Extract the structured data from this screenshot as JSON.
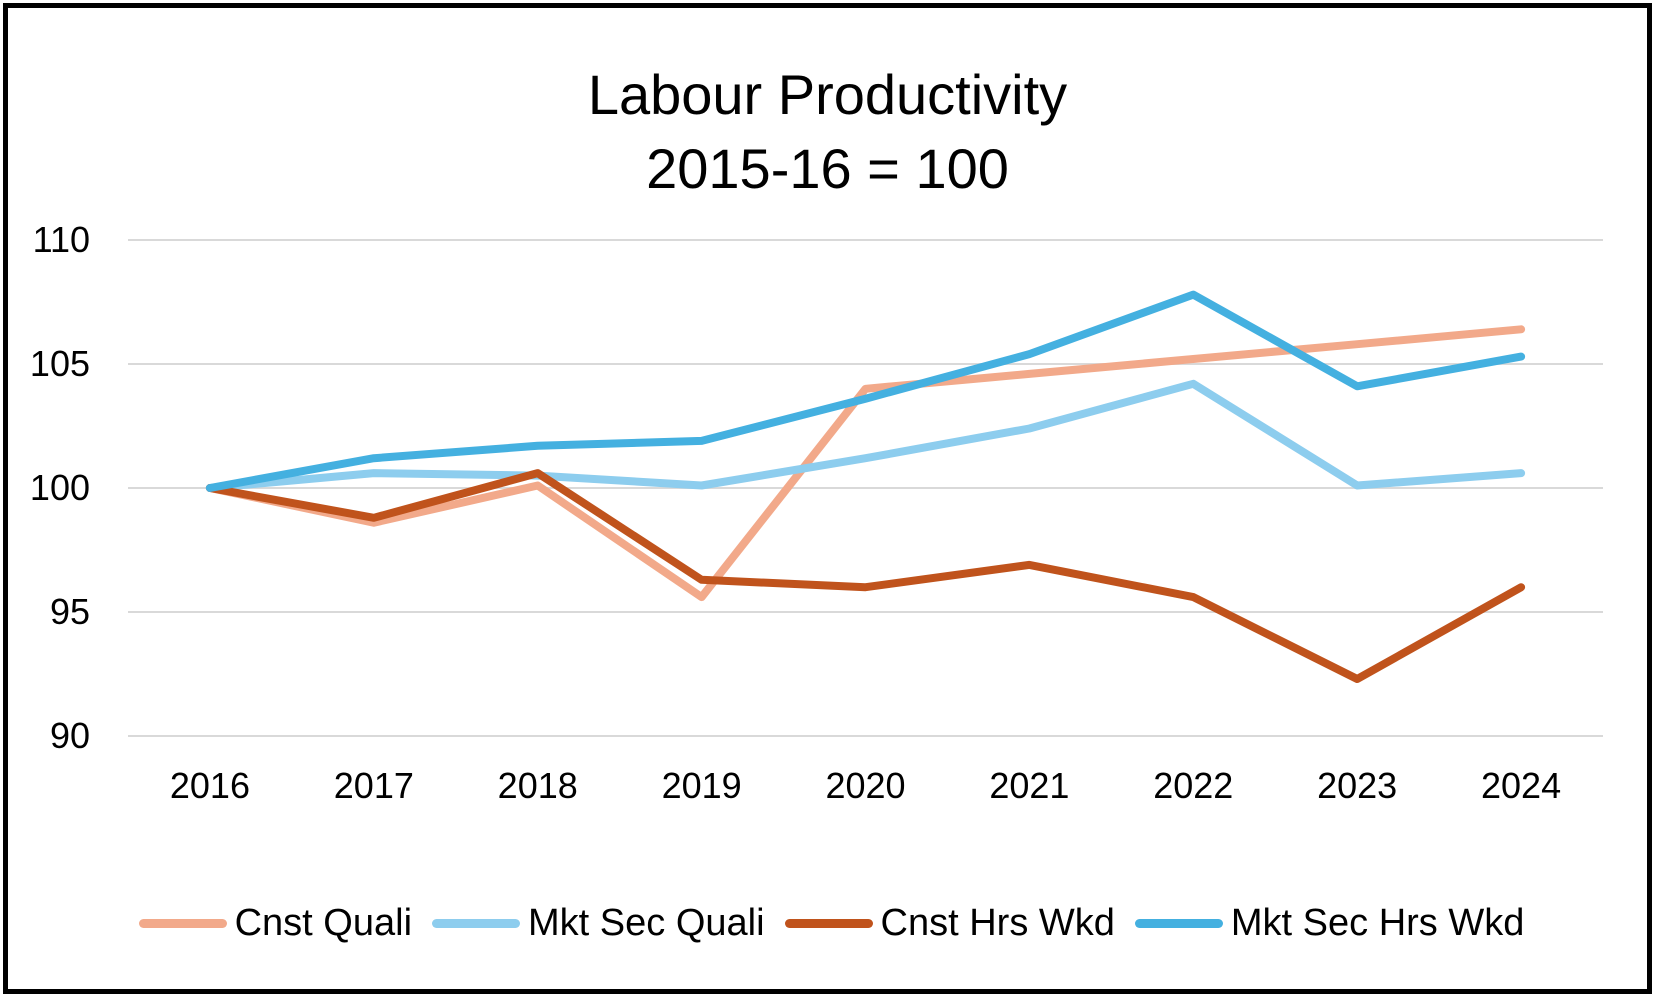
{
  "chart_data": {
    "type": "line",
    "title_lines": [
      "Labour Productivity",
      "2015-16 = 100"
    ],
    "xlabel": "",
    "ylabel": "",
    "categories": [
      "2016",
      "2017",
      "2018",
      "2019",
      "2020",
      "2021",
      "2022",
      "2023",
      "2024"
    ],
    "ylim": [
      90,
      110
    ],
    "yticks": [
      90,
      95,
      100,
      105,
      110
    ],
    "grid": true,
    "legend_position": "bottom",
    "series": [
      {
        "name": "Cnst Quali",
        "color": "#F2A98A",
        "values": [
          100,
          98.6,
          100.1,
          95.6,
          104.0,
          104.6,
          105.2,
          105.8,
          106.4
        ]
      },
      {
        "name": "Mkt Sec Quali",
        "color": "#8DCDEE",
        "values": [
          100,
          100.6,
          100.5,
          100.1,
          101.2,
          102.4,
          104.2,
          100.1,
          100.6
        ]
      },
      {
        "name": "Cnst Hrs Wkd",
        "color": "#C0531C",
        "values": [
          100,
          98.8,
          100.6,
          96.3,
          96.0,
          96.9,
          95.6,
          92.3,
          96.0
        ]
      },
      {
        "name": "Mkt Sec Hrs Wkd",
        "color": "#44B0E0",
        "values": [
          100,
          101.2,
          101.7,
          101.9,
          103.6,
          105.4,
          107.8,
          104.1,
          105.3
        ]
      }
    ]
  }
}
